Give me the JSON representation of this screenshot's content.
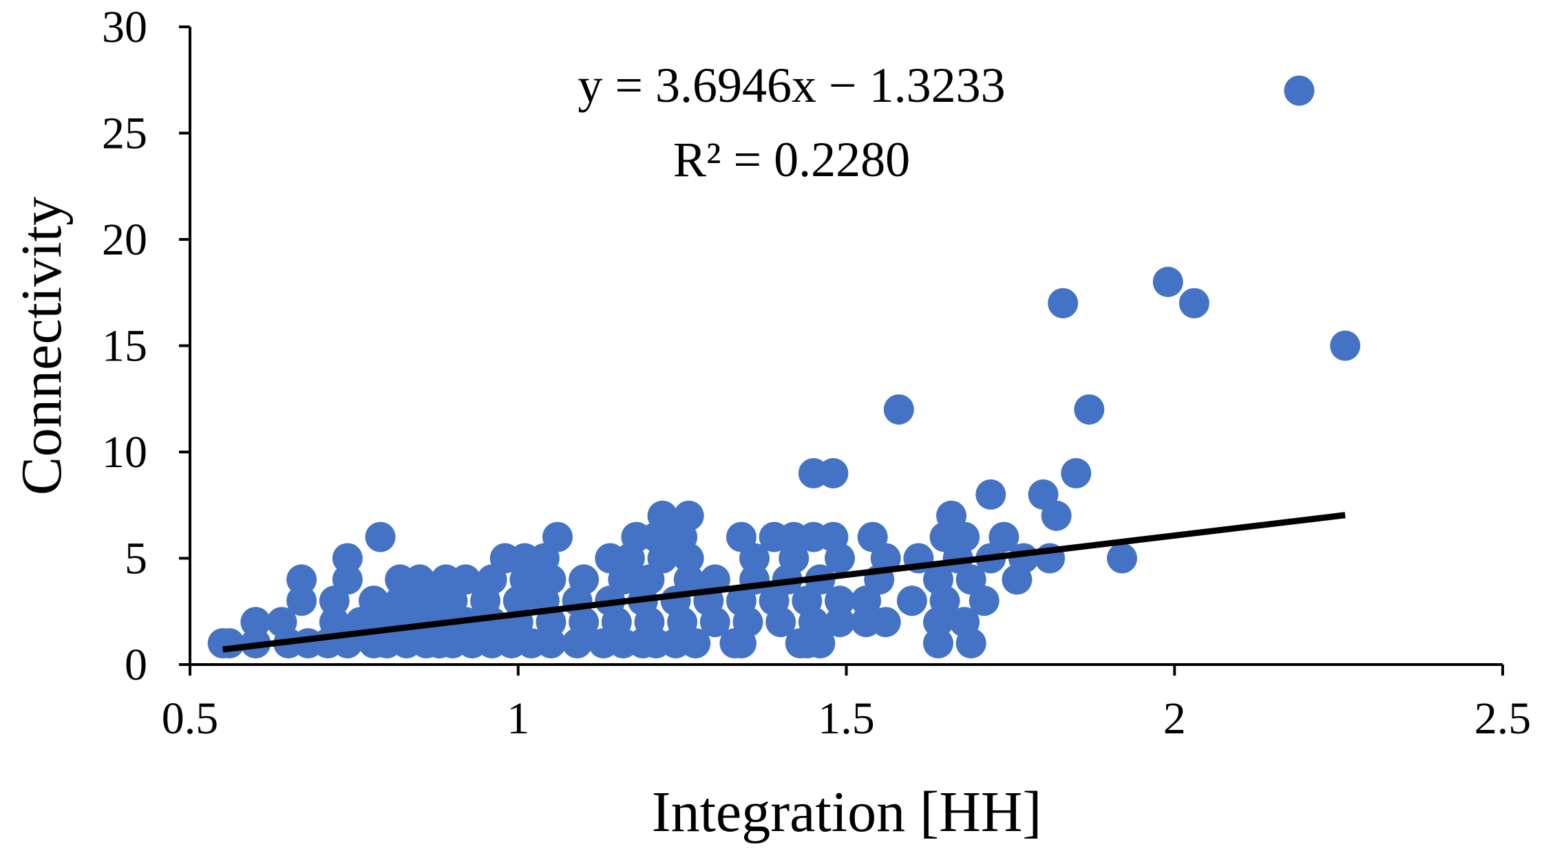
{
  "chart_data": {
    "type": "scatter",
    "xlabel": "Integration [HH]",
    "ylabel": "Connectivity",
    "annotations": [
      "y = 3.6946x − 1.3233",
      "R² = 0.2280"
    ],
    "xlim": [
      0.5,
      2.5
    ],
    "xticks": [
      0.5,
      1,
      1.5,
      2,
      2.5
    ],
    "ylim": [
      0,
      30
    ],
    "yticks": [
      0,
      5,
      10,
      15,
      20,
      25,
      30
    ],
    "grid": false,
    "series": [
      {
        "color": "#4472c4",
        "x": [
          0.55,
          0.56,
          0.6,
          0.65,
          0.68,
          0.71,
          0.74,
          0.78,
          0.8,
          0.83,
          0.86,
          0.88,
          0.9,
          0.93,
          0.96,
          0.99,
          1.02,
          1.05,
          1.09,
          1.13,
          1.16,
          1.19,
          1.21,
          1.24,
          1.27,
          1.33,
          1.34,
          1.43,
          1.44,
          1.46,
          1.64,
          1.69,
          0.6,
          0.64,
          0.72,
          0.76,
          0.8,
          0.84,
          0.88,
          0.92,
          0.96,
          1.0,
          1.05,
          1.1,
          1.15,
          1.2,
          1.25,
          1.3,
          1.35,
          1.4,
          1.45,
          1.49,
          1.53,
          1.56,
          1.64,
          1.68,
          0.67,
          0.72,
          0.78,
          0.82,
          0.86,
          0.9,
          0.95,
          1.0,
          1.04,
          1.09,
          1.14,
          1.19,
          1.24,
          1.29,
          1.34,
          1.39,
          1.44,
          1.49,
          1.53,
          1.6,
          1.65,
          1.71,
          0.67,
          0.74,
          0.82,
          0.85,
          0.89,
          0.92,
          0.96,
          1.01,
          1.05,
          1.1,
          1.16,
          1.2,
          1.26,
          1.3,
          1.36,
          1.41,
          1.46,
          1.55,
          1.64,
          1.69,
          1.76,
          0.74,
          0.98,
          1.01,
          1.04,
          1.14,
          1.17,
          1.22,
          1.26,
          1.36,
          1.42,
          1.49,
          1.56,
          1.61,
          1.67,
          1.72,
          1.77,
          1.81,
          1.92,
          0.79,
          1.06,
          1.18,
          1.21,
          1.25,
          1.34,
          1.39,
          1.42,
          1.45,
          1.48,
          1.54,
          1.65,
          1.68,
          1.74,
          1.22,
          1.26,
          1.66,
          1.82,
          1.72,
          1.8,
          1.45,
          1.48,
          1.85,
          1.58,
          1.87,
          2.26,
          1.83,
          2.03,
          1.99,
          2.19
        ],
        "y": [
          1,
          1,
          1,
          1,
          1,
          1,
          1,
          1,
          1,
          1,
          1,
          1,
          1,
          1,
          1,
          1,
          1,
          1,
          1,
          1,
          1,
          1,
          1,
          1,
          1,
          1,
          1,
          1,
          1,
          1,
          1,
          1,
          2,
          2,
          2,
          2,
          2,
          2,
          2,
          2,
          2,
          2,
          2,
          2,
          2,
          2,
          2,
          2,
          2,
          2,
          2,
          2,
          2,
          2,
          2,
          2,
          3,
          3,
          3,
          3,
          3,
          3,
          3,
          3,
          3,
          3,
          3,
          3,
          3,
          3,
          3,
          3,
          3,
          3,
          3,
          3,
          3,
          3,
          4,
          4,
          4,
          4,
          4,
          4,
          4,
          4,
          4,
          4,
          4,
          4,
          4,
          4,
          4,
          4,
          4,
          4,
          4,
          4,
          4,
          5,
          5,
          5,
          5,
          5,
          5,
          5,
          5,
          5,
          5,
          5,
          5,
          5,
          5,
          5,
          5,
          5,
          5,
          6,
          6,
          6,
          6,
          6,
          6,
          6,
          6,
          6,
          6,
          6,
          6,
          6,
          6,
          7,
          7,
          7,
          7,
          8,
          8,
          9,
          9,
          9,
          12,
          12,
          15,
          17,
          17,
          18,
          27
        ]
      }
    ],
    "trendline": {
      "color": "#000000",
      "x": [
        0.55,
        2.26
      ],
      "y": [
        0.71,
        7.03
      ]
    }
  }
}
